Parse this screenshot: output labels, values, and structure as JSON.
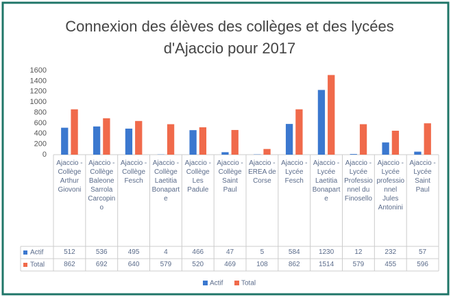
{
  "chart_data": {
    "type": "bar",
    "title": [
      "Connexion des élèves des collèges et des lycées",
      "d'Ajaccio pour 2017"
    ],
    "categories": [
      "Ajaccio - Collège Arthur Giovoni",
      "Ajaccio - Collège Baleone Sarrola Carcopino",
      "Ajaccio - Collège Fesch",
      "Ajaccio - Collège Laetitia Bonaparte",
      "Ajaccio - Collège Les Padule",
      "Ajaccio - Collège Saint Paul",
      "Ajaccio - EREA de Corse",
      "Ajaccio - Lycée Fesch",
      "Ajaccio - Lycée Laetitia Bonaparte",
      "Ajaccio - Lycée Professionnel du Finosello",
      "Ajaccio - Lycée professionnel Jules Antonini",
      "Ajaccio - Lycée Saint Paul"
    ],
    "series": [
      {
        "name": "Actif",
        "color": "#3b78cf",
        "values": [
          512,
          536,
          495,
          4,
          466,
          47,
          5,
          584,
          1230,
          12,
          232,
          57
        ]
      },
      {
        "name": "Total",
        "color": "#f06a4b",
        "values": [
          862,
          692,
          640,
          579,
          520,
          469,
          108,
          862,
          1514,
          579,
          455,
          596
        ]
      }
    ],
    "ylim": [
      0,
      1600
    ],
    "yticks": [
      0,
      200,
      400,
      600,
      800,
      1000,
      1200,
      1400,
      1600
    ],
    "grid": false,
    "legend": "bottom"
  }
}
